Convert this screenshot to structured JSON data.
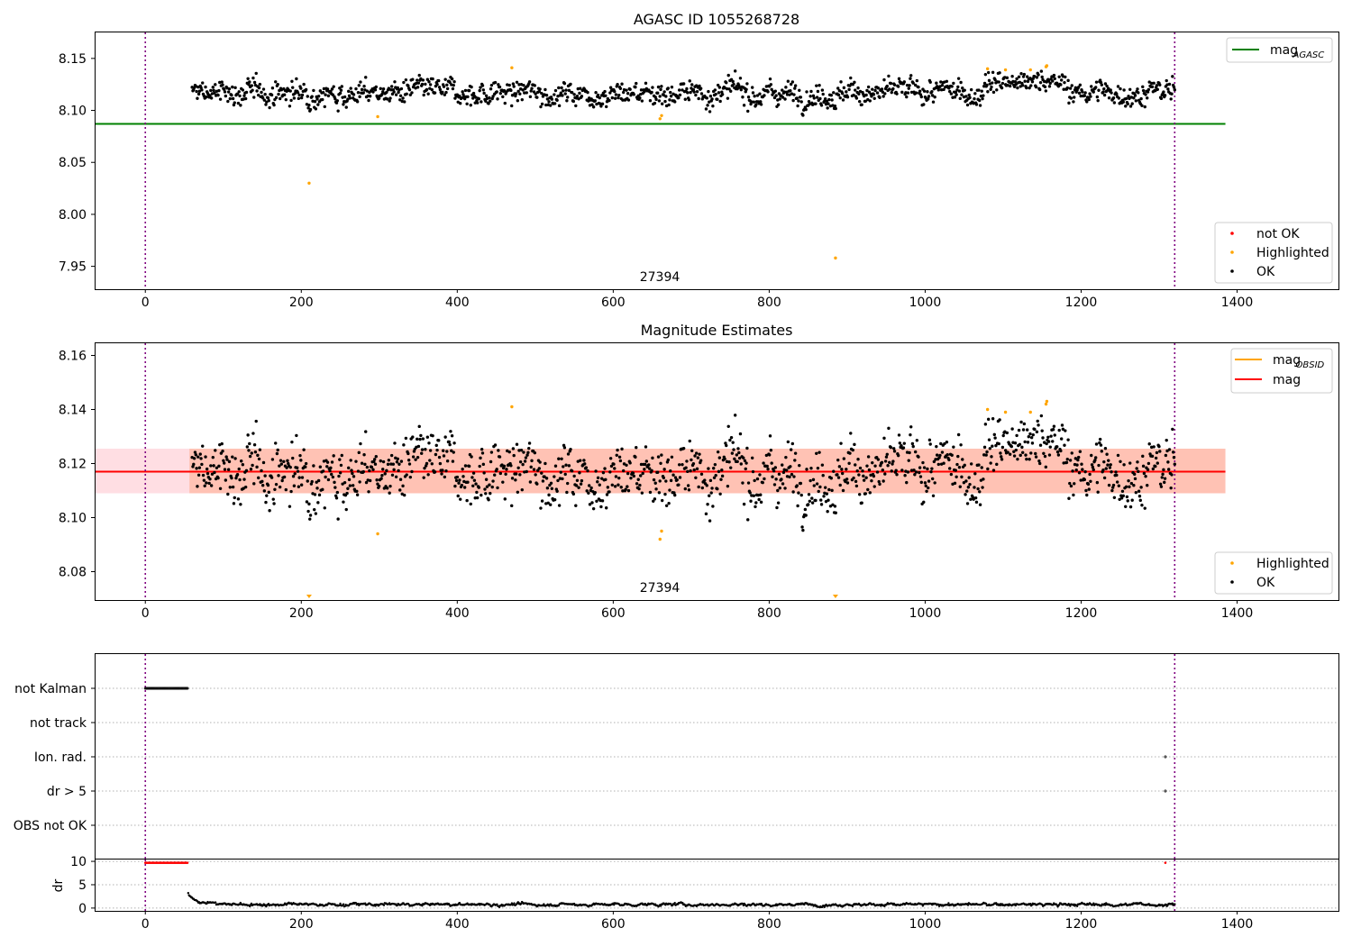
{
  "figure": {
    "title": "AGASC ID 1055268728"
  },
  "chart_data": [
    {
      "type": "scatter",
      "panel": "top",
      "title": "AGASC ID 1055268728",
      "xlim": [
        -65,
        1530
      ],
      "ylim": [
        7.928,
        8.175
      ],
      "xticks": [
        0,
        200,
        400,
        600,
        800,
        1000,
        1200,
        1400
      ],
      "yticks": [
        7.95,
        8.0,
        8.05,
        8.1,
        8.15
      ],
      "ytick_labels": [
        "7.95",
        "8.00",
        "8.05",
        "8.10",
        "8.15"
      ],
      "obsid_label": "27394",
      "obsid_label_x": 658,
      "vlines": [
        0,
        1320
      ],
      "mag_agasc": 8.087,
      "mag_agasc_range": [
        -65,
        1385
      ],
      "ok_series": {
        "x_range": [
          60,
          1320
        ],
        "n": 1320,
        "baseline": 8.117,
        "noise": 0.0065,
        "high_segment": {
          "x_range": [
            1075,
            1180
          ],
          "value": 8.128
        }
      },
      "highlighted": [
        {
          "x": 210,
          "y": 8.03
        },
        {
          "x": 298,
          "y": 8.094
        },
        {
          "x": 470,
          "y": 8.141
        },
        {
          "x": 660,
          "y": 8.092
        },
        {
          "x": 662,
          "y": 8.095
        },
        {
          "x": 885,
          "y": 7.958
        },
        {
          "x": 1080,
          "y": 8.14
        },
        {
          "x": 1103,
          "y": 8.139
        },
        {
          "x": 1135,
          "y": 8.139
        },
        {
          "x": 1155,
          "y": 8.142
        },
        {
          "x": 1156,
          "y": 8.143
        }
      ],
      "legend_upper": [
        {
          "label": "mag",
          "subscript": "AGASC",
          "color": "#008000",
          "marker": "line"
        }
      ],
      "legend_lower": [
        {
          "label": "not OK",
          "color": "#ff0000",
          "marker": "dot"
        },
        {
          "label": "Highlighted",
          "color": "#ffa500",
          "marker": "dot"
        },
        {
          "label": "OK",
          "color": "#000000",
          "marker": "dot"
        }
      ]
    },
    {
      "type": "scatter",
      "panel": "middle",
      "title": "Magnitude Estimates",
      "xlim": [
        -65,
        1530
      ],
      "ylim": [
        8.0695,
        8.1645
      ],
      "xticks": [
        0,
        200,
        400,
        600,
        800,
        1000,
        1200,
        1400
      ],
      "yticks": [
        8.08,
        8.1,
        8.12,
        8.14,
        8.16
      ],
      "ytick_labels": [
        "8.08",
        "8.10",
        "8.12",
        "8.14",
        "8.16"
      ],
      "obsid_label": "27394",
      "obsid_label_x": 658,
      "vlines": [
        0,
        1320
      ],
      "mag": 8.117,
      "mag_band": [
        8.109,
        8.1255
      ],
      "mag_obsid_band": [
        8.109,
        8.1255
      ],
      "band_range": [
        -65,
        1385
      ],
      "highlighted_clipped_x": [
        210,
        885
      ],
      "legend_upper": [
        {
          "label": "mag",
          "subscript": "OBSID",
          "color": "#ffa500",
          "marker": "line"
        },
        {
          "label": "mag",
          "subscript": "",
          "color": "#ff0000",
          "marker": "line"
        }
      ],
      "legend_lower": [
        {
          "label": "Highlighted",
          "color": "#ffa500",
          "marker": "dot"
        },
        {
          "label": "OK",
          "color": "#000000",
          "marker": "dot"
        }
      ]
    },
    {
      "type": "scatter",
      "panel": "flags",
      "xlim": [
        -65,
        1530
      ],
      "categories": [
        "not Kalman",
        "not track",
        "Ion. rad.",
        "dr > 5",
        "OBS not OK"
      ],
      "vlines": [
        0,
        1320
      ],
      "not_kalman_range": [
        0,
        55
      ],
      "ion_rad_x": [
        1308
      ],
      "dr5_x": [
        1308
      ]
    },
    {
      "type": "scatter",
      "panel": "dr",
      "xlim": [
        -65,
        1530
      ],
      "ylim": [
        -0.6,
        10.4
      ],
      "yticks": [
        0,
        5,
        10
      ],
      "ytick_labels": [
        "0",
        "5",
        "10"
      ],
      "ylabel": "dr",
      "xticks": [
        0,
        200,
        400,
        600,
        800,
        1000,
        1200,
        1400
      ],
      "vlines": [
        0,
        1320
      ],
      "clipped_range": [
        0,
        55
      ],
      "clipped_extra_x": [
        1308
      ],
      "clipped_value": 9.7,
      "series_range": [
        55,
        1320
      ],
      "decay_start": 2.7,
      "baseline": 0.5
    }
  ]
}
